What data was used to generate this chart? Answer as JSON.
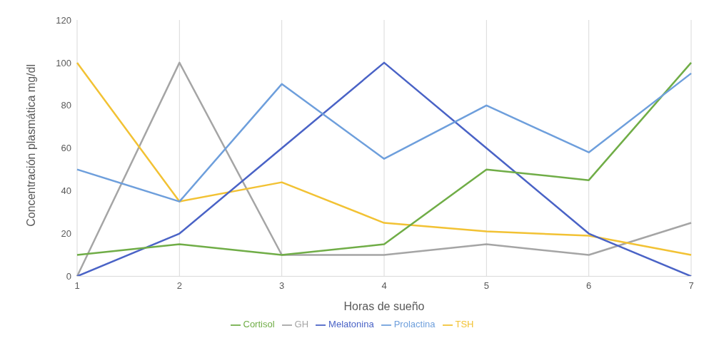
{
  "chart_data": {
    "type": "line",
    "xlabel": "Horas de sueño",
    "ylabel": "Concentración plasmática mg/dl",
    "categories": [
      "1",
      "2",
      "3",
      "4",
      "5",
      "6",
      "7"
    ],
    "series": [
      {
        "name": "GH",
        "color": "#a5a5a5",
        "values": [
          0,
          100,
          10,
          10,
          15,
          10,
          25
        ]
      },
      {
        "name": "TSH",
        "color": "#f2c234",
        "values": [
          100,
          35,
          44,
          25,
          21,
          19,
          10
        ]
      },
      {
        "name": "Melatonina",
        "color": "#4a63c6",
        "values": [
          0,
          20,
          60,
          100,
          60,
          20,
          0
        ]
      },
      {
        "name": "Cortisol",
        "color": "#70ad47",
        "values": [
          10,
          15,
          10,
          15,
          50,
          45,
          100
        ]
      },
      {
        "name": "Prolactina",
        "color": "#6e9fdc",
        "values": [
          50,
          35,
          90,
          55,
          80,
          58,
          95
        ]
      }
    ],
    "ylim": [
      0,
      120
    ],
    "yticks": [
      0,
      20,
      40,
      60,
      80,
      100,
      120
    ],
    "grid": "x",
    "legend": "bottom",
    "marker": "none",
    "line_style": "solid"
  }
}
